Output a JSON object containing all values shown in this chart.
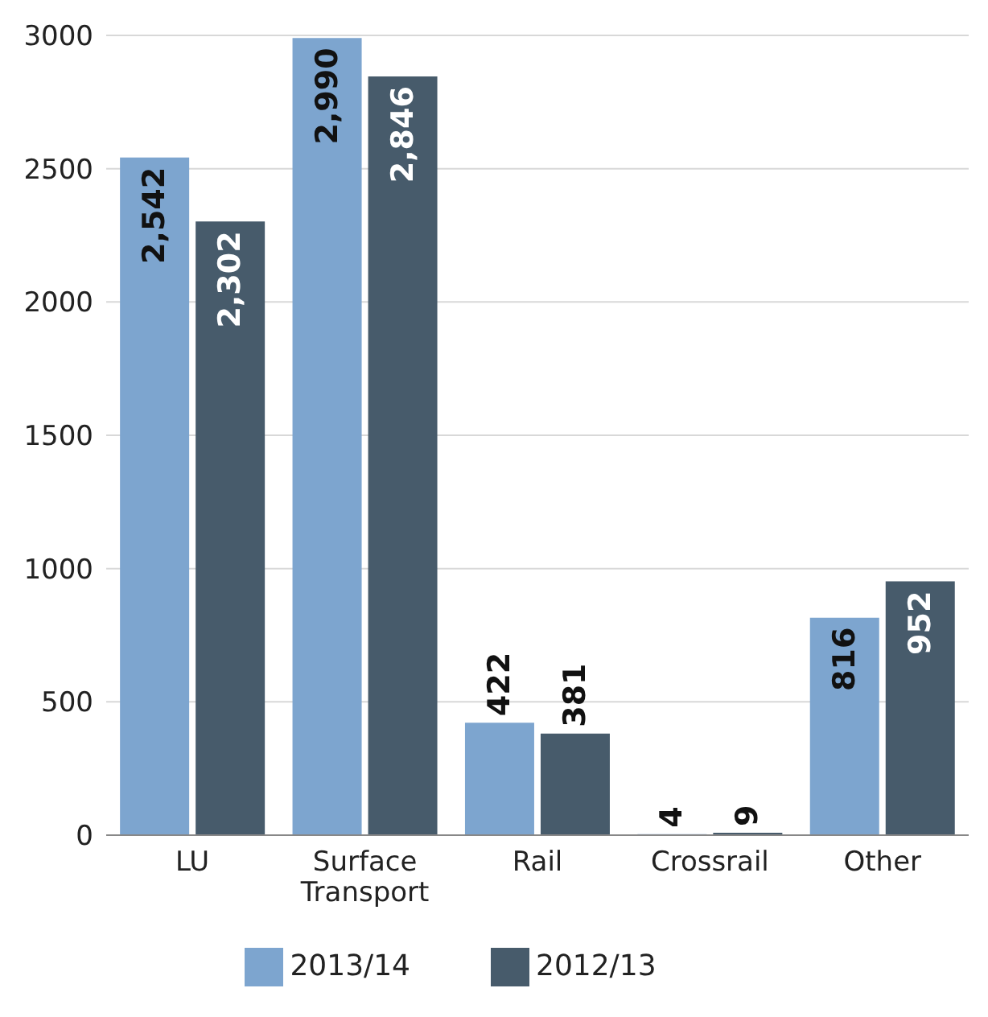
{
  "chart_data": {
    "type": "bar",
    "categories": [
      "LU",
      "Surface\nTransport",
      "Rail",
      "Crossrail",
      "Other"
    ],
    "series": [
      {
        "name": "2013/14",
        "color": "#7da5cf",
        "values": [
          2542,
          2990,
          422,
          4,
          816
        ],
        "value_labels": [
          "2,542",
          "2,990",
          "422",
          "4",
          "816"
        ]
      },
      {
        "name": "2012/13",
        "color": "#475b6b",
        "values": [
          2302,
          2846,
          381,
          9,
          952
        ],
        "value_labels": [
          "2,302",
          "2,846",
          "381",
          "9",
          "952"
        ]
      }
    ],
    "ylim": [
      0,
      3000
    ],
    "yticks": [
      0,
      500,
      1000,
      1500,
      2000,
      2500,
      3000
    ],
    "grid": "y",
    "legend": "bottom"
  }
}
